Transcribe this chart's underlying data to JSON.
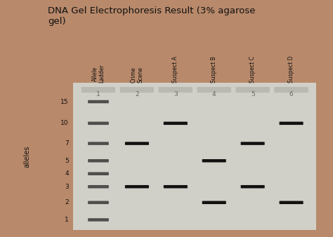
{
  "title": "DNA Gel Electrophoresis Result (3% agarose\ngel)",
  "title_fontsize": 9.5,
  "background_color": "#b8896a",
  "gel_bg_color": "#d0d0c8",
  "gel_inner_color": "#e8e8e0",
  "band_color": "#111111",
  "band_color_light": "#444444",
  "ylabel": "alleles",
  "allele_labels": [
    1,
    2,
    3,
    4,
    5,
    7,
    10,
    15
  ],
  "allele_y": [
    1.0,
    2.2,
    3.3,
    4.2,
    5.1,
    6.3,
    7.7,
    9.2
  ],
  "lane_numbers": [
    "1",
    "2",
    "3",
    "4",
    "5",
    "6"
  ],
  "lane_labels": [
    "Allele\nLadder",
    "Crime\nScene",
    "Suspect A",
    "Suspect B",
    "Suspect C",
    "Suspect D"
  ],
  "lane_x": [
    1,
    2,
    3,
    4,
    5,
    6
  ],
  "ladder_bands": [
    1,
    2,
    3,
    4,
    5,
    7,
    10,
    15
  ],
  "crime_scene_bands": [
    3,
    7
  ],
  "suspect_a_bands": [
    3,
    10
  ],
  "suspect_b_bands": [
    2,
    5
  ],
  "suspect_c_bands": [
    3,
    7
  ],
  "suspect_d_bands": [
    2,
    10
  ],
  "xlim": [
    0.35,
    6.65
  ],
  "ylim": [
    0.3,
    10.5
  ],
  "lane_num_y": 9.7
}
